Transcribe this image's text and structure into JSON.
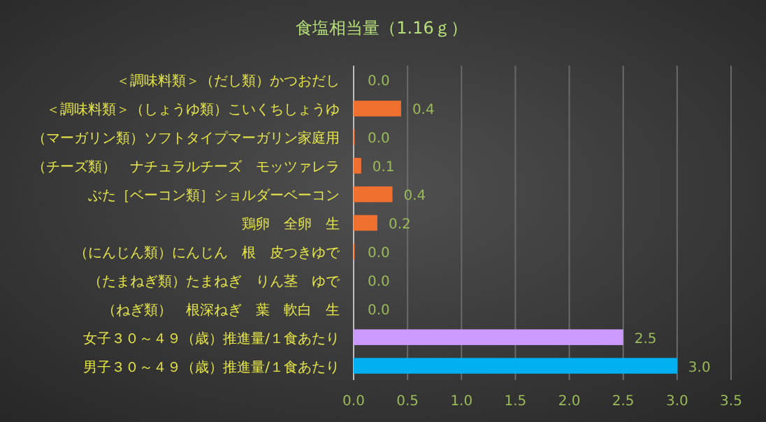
{
  "chart_data": {
    "type": "bar",
    "orientation": "horizontal",
    "title": "食塩相当量（1.16ｇ）",
    "categories": [
      "＜調味料類＞（だし類）かつおだし",
      "＜調味料類＞（しょうゆ類）こいくちしょうゆ",
      "（マーガリン類）ソフトタイプマーガリン家庭用",
      "（チーズ類）　ナチュラルチーズ　モッツァレラ",
      "ぶた［ベーコン類］ショルダーベーコン",
      "鶏卵　全卵　生",
      "（にんじん類）にんじん　根　皮つきゆで",
      "（たまねぎ類）たまねぎ　りん茎　ゆで",
      "（ねぎ類）　根深ねぎ　葉　軟白　生",
      "女子３０～４９（歳）推進量/１食あたり",
      "男子３０～４９（歳）推進量/１食あたり"
    ],
    "values": [
      0,
      0.44,
      0.01,
      0.07,
      0.36,
      0.22,
      0.01,
      0,
      0,
      2.5,
      3.0
    ],
    "value_labels": [
      "0.0",
      "0.4",
      "0.0",
      "0.1",
      "0.4",
      "0.2",
      "0.0",
      "0.0",
      "0.0",
      "2.5",
      "3.0"
    ],
    "colors": [
      "#f07030",
      "#f07030",
      "#f07030",
      "#f07030",
      "#f07030",
      "#f07030",
      "#f07030",
      "#f07030",
      "#f07030",
      "#cc99ff",
      "#00b0f0"
    ],
    "xlim": [
      0,
      3.5
    ],
    "xticks": [
      {
        "value": 0,
        "label": "0.0"
      },
      {
        "value": 0.5,
        "label": "0.5"
      },
      {
        "value": 1,
        "label": "1.0"
      },
      {
        "value": 1.5,
        "label": "1.5"
      },
      {
        "value": 2,
        "label": "2.0"
      },
      {
        "value": 2.5,
        "label": "2.5"
      },
      {
        "value": 3,
        "label": "3.0"
      },
      {
        "value": 3.5,
        "label": "3.5"
      }
    ],
    "grid": "x"
  }
}
